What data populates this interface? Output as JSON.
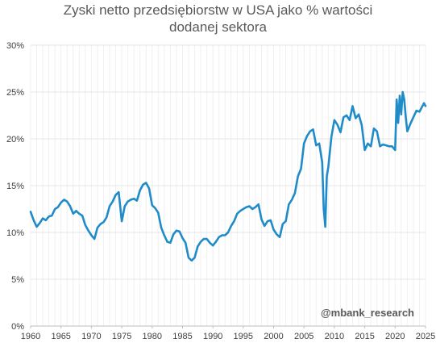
{
  "chart_data": {
    "type": "line",
    "title_lines": [
      "Zyski netto przedsiębiorstw w USA jako % wartości",
      "dodanej sektora"
    ],
    "watermark": "@mbank_research",
    "xlabel": "",
    "ylabel": "",
    "xlim": [
      1960,
      2025
    ],
    "ylim": [
      0,
      30
    ],
    "x_ticks": [
      1960,
      1965,
      1970,
      1975,
      1980,
      1985,
      1990,
      1995,
      2000,
      2005,
      2010,
      2015,
      2020,
      2025
    ],
    "y_ticks": [
      0,
      5,
      10,
      15,
      20,
      25,
      30
    ],
    "y_tick_labels": [
      "0%",
      "5%",
      "10%",
      "15%",
      "20%",
      "25%",
      "30%"
    ],
    "grid": "vertical and horizontal, light",
    "legend": "none",
    "line_color": "#1f8bc9",
    "series": [
      {
        "x": [
          1960.0,
          1960.5,
          1961.0,
          1961.5,
          1962.0,
          1962.5,
          1963.0,
          1963.5,
          1964.0,
          1964.5,
          1965.0,
          1965.5,
          1966.0,
          1966.5,
          1967.0,
          1967.5,
          1968.0,
          1968.5,
          1969.0,
          1969.5,
          1970.0,
          1970.5,
          1971.0,
          1971.5,
          1972.0,
          1972.5,
          1973.0,
          1973.5,
          1974.0,
          1974.5,
          1975.0,
          1975.5,
          1976.0,
          1976.5,
          1977.0,
          1977.5,
          1978.0,
          1978.5,
          1979.0,
          1979.5,
          1980.0,
          1980.5,
          1981.0,
          1981.5,
          1982.0,
          1982.5,
          1983.0,
          1983.5,
          1984.0,
          1984.5,
          1985.0,
          1985.5,
          1986.0,
          1986.5,
          1987.0,
          1987.5,
          1988.0,
          1988.5,
          1989.0,
          1989.5,
          1990.0,
          1990.5,
          1991.0,
          1991.5,
          1992.0,
          1992.5,
          1993.0,
          1993.5,
          1994.0,
          1994.5,
          1995.0,
          1995.5,
          1996.0,
          1996.5,
          1997.0,
          1997.5,
          1998.0,
          1998.5,
          1999.0,
          1999.5,
          2000.0,
          2000.5,
          2001.0,
          2001.5,
          2002.0,
          2002.5,
          2003.0,
          2003.5,
          2004.0,
          2004.5,
          2005.0,
          2005.5,
          2006.0,
          2006.5,
          2007.0,
          2007.5,
          2008.0,
          2008.25,
          2008.5,
          2008.75,
          2009.0,
          2009.5,
          2010.0,
          2010.5,
          2011.0,
          2011.5,
          2012.0,
          2012.5,
          2013.0,
          2013.5,
          2014.0,
          2014.5,
          2015.0,
          2015.5,
          2016.0,
          2016.5,
          2017.0,
          2017.5,
          2018.0,
          2018.5,
          2019.0,
          2019.5,
          2020.0,
          2020.25,
          2020.5,
          2020.75,
          2021.0,
          2021.25,
          2021.5,
          2021.75,
          2022.0,
          2022.5,
          2023.0,
          2023.5,
          2024.0,
          2024.5,
          2024.75,
          2025.0
        ],
        "values": [
          12.2,
          11.3,
          10.6,
          11.0,
          11.5,
          11.3,
          11.7,
          11.8,
          12.5,
          12.7,
          13.2,
          13.5,
          13.3,
          12.8,
          12.0,
          12.3,
          12.0,
          11.8,
          10.8,
          10.2,
          9.7,
          9.3,
          10.5,
          10.9,
          11.1,
          11.6,
          12.8,
          13.3,
          14.0,
          14.3,
          11.2,
          12.8,
          13.3,
          13.5,
          13.6,
          13.4,
          14.5,
          15.1,
          15.3,
          14.7,
          12.9,
          12.6,
          12.1,
          10.5,
          9.7,
          9.0,
          8.9,
          9.8,
          10.2,
          10.1,
          9.4,
          8.9,
          7.3,
          7.0,
          7.3,
          8.5,
          9.0,
          9.3,
          9.3,
          8.9,
          8.6,
          9.0,
          9.5,
          9.7,
          9.7,
          10.0,
          10.7,
          11.2,
          12.0,
          12.3,
          12.5,
          12.7,
          12.8,
          12.5,
          12.7,
          13.0,
          11.4,
          10.7,
          11.2,
          11.3,
          10.3,
          9.8,
          9.5,
          10.9,
          11.2,
          13.0,
          13.5,
          14.2,
          16.0,
          16.8,
          19.5,
          20.3,
          20.8,
          21.0,
          19.3,
          19.5,
          17.5,
          12.5,
          10.6,
          16.0,
          17.0,
          20.2,
          22.0,
          21.5,
          20.7,
          22.3,
          22.5,
          22.0,
          23.5,
          22.2,
          22.6,
          21.5,
          18.8,
          19.5,
          19.2,
          21.1,
          20.8,
          19.2,
          19.4,
          19.3,
          19.2,
          19.2,
          18.8,
          24.2,
          21.7,
          24.6,
          22.6,
          25.0,
          24.2,
          22.3,
          20.8,
          21.6,
          22.3,
          23.0,
          22.9,
          23.5,
          23.8,
          23.5
        ]
      }
    ]
  }
}
